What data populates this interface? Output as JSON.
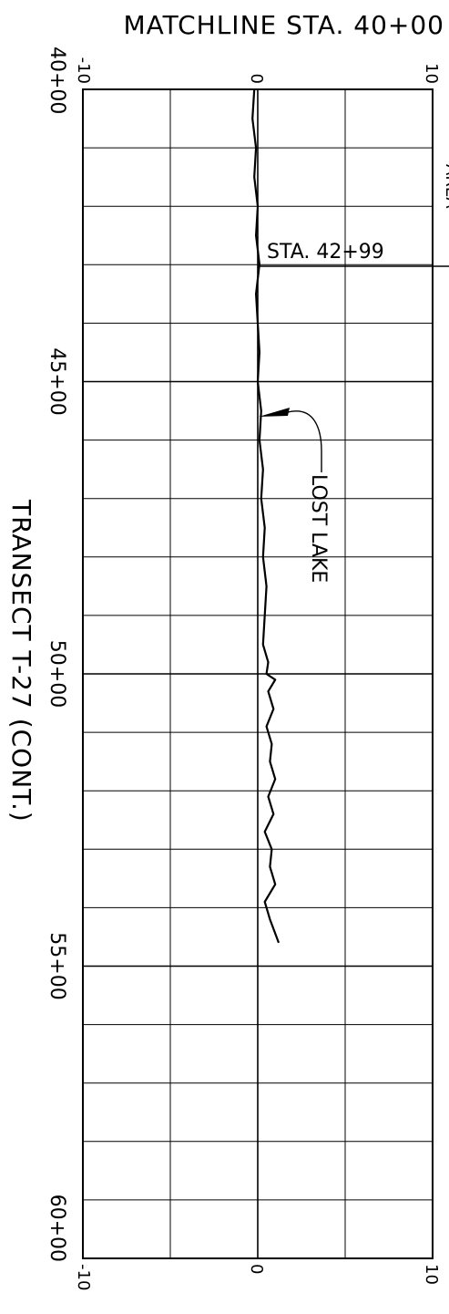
{
  "drawing": {
    "header": "MATCHLINE  STA.  40+00",
    "title": "TRANSECT  T-27  (CONT.)",
    "station_marker": "STA.  42+99",
    "feature_label": "LOST  LAKE",
    "partial_label": "AREA",
    "top_scale": {
      "left": "-10",
      "center": "0",
      "right": "10"
    },
    "bottom_scale": {
      "left": "-10",
      "center": "0",
      "right": "10"
    },
    "station_labels": [
      "40+00",
      "45+00",
      "50+00",
      "55+00",
      "60+00"
    ]
  },
  "chart_data": {
    "type": "line",
    "title": "TRANSECT  T-27  (CONT.)",
    "xlabel": "",
    "ylabel": "",
    "x_range": [
      -10,
      10
    ],
    "station_range": [
      4000,
      6000
    ],
    "grid": true,
    "profile": {
      "x": [
        -0.2,
        -0.3,
        -0.1,
        -0.2,
        0.0,
        -0.1,
        0.1,
        -0.1,
        0.0,
        0.1,
        0.0,
        0.2,
        0.1,
        0.3,
        0.2,
        0.4,
        0.3,
        0.5,
        0.4,
        0.3,
        0.6,
        0.5,
        1.0,
        0.6,
        0.9,
        0.5,
        0.8,
        0.7,
        1.0,
        0.6,
        0.9,
        0.4,
        0.8,
        0.7,
        1.0,
        0.4,
        0.7,
        1.2
      ],
      "station": [
        4000,
        4050,
        4100,
        4150,
        4200,
        4250,
        4299,
        4350,
        4400,
        4450,
        4500,
        4550,
        4600,
        4650,
        4700,
        4750,
        4800,
        4850,
        4900,
        4950,
        4980,
        5000,
        5010,
        5030,
        5060,
        5090,
        5120,
        5150,
        5180,
        5210,
        5240,
        5270,
        5300,
        5330,
        5360,
        5390,
        5420,
        5460
      ]
    }
  }
}
